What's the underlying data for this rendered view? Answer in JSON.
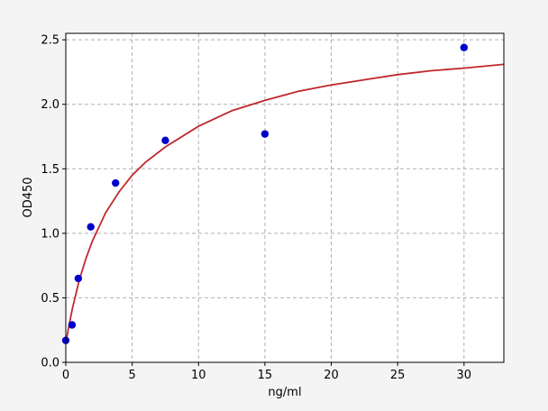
{
  "chart_data": {
    "type": "scatter",
    "title": "",
    "xlabel": "ng/ml",
    "ylabel": "OD450",
    "xlim": [
      0,
      33
    ],
    "ylim": [
      0,
      2.55
    ],
    "grid": true,
    "x_ticks": [
      0,
      5,
      10,
      15,
      20,
      25,
      30
    ],
    "y_ticks": [
      0.0,
      0.5,
      1.0,
      1.5,
      2.0,
      2.5
    ],
    "x_tick_labels": [
      "0",
      "5",
      "10",
      "15",
      "20",
      "25",
      "30"
    ],
    "y_tick_labels": [
      "0.0",
      "0.5",
      "1.0",
      "1.5",
      "2.0",
      "2.5"
    ],
    "points": {
      "x": [
        0,
        0.47,
        0.94,
        1.88,
        3.75,
        7.5,
        15,
        30
      ],
      "y": [
        0.17,
        0.29,
        0.65,
        1.05,
        1.39,
        1.72,
        1.77,
        2.44
      ],
      "color": "#0000cc"
    },
    "fit_curve": {
      "x": [
        0,
        0.25,
        0.5,
        1,
        1.5,
        2,
        3,
        4,
        5,
        6,
        7.5,
        10,
        12.5,
        15,
        17.5,
        20,
        22.5,
        25,
        27.5,
        30,
        33
      ],
      "y": [
        0.15,
        0.29,
        0.42,
        0.63,
        0.8,
        0.94,
        1.16,
        1.32,
        1.45,
        1.55,
        1.67,
        1.83,
        1.95,
        2.03,
        2.1,
        2.15,
        2.19,
        2.23,
        2.26,
        2.28,
        2.31
      ],
      "color": "#c0282d"
    }
  }
}
